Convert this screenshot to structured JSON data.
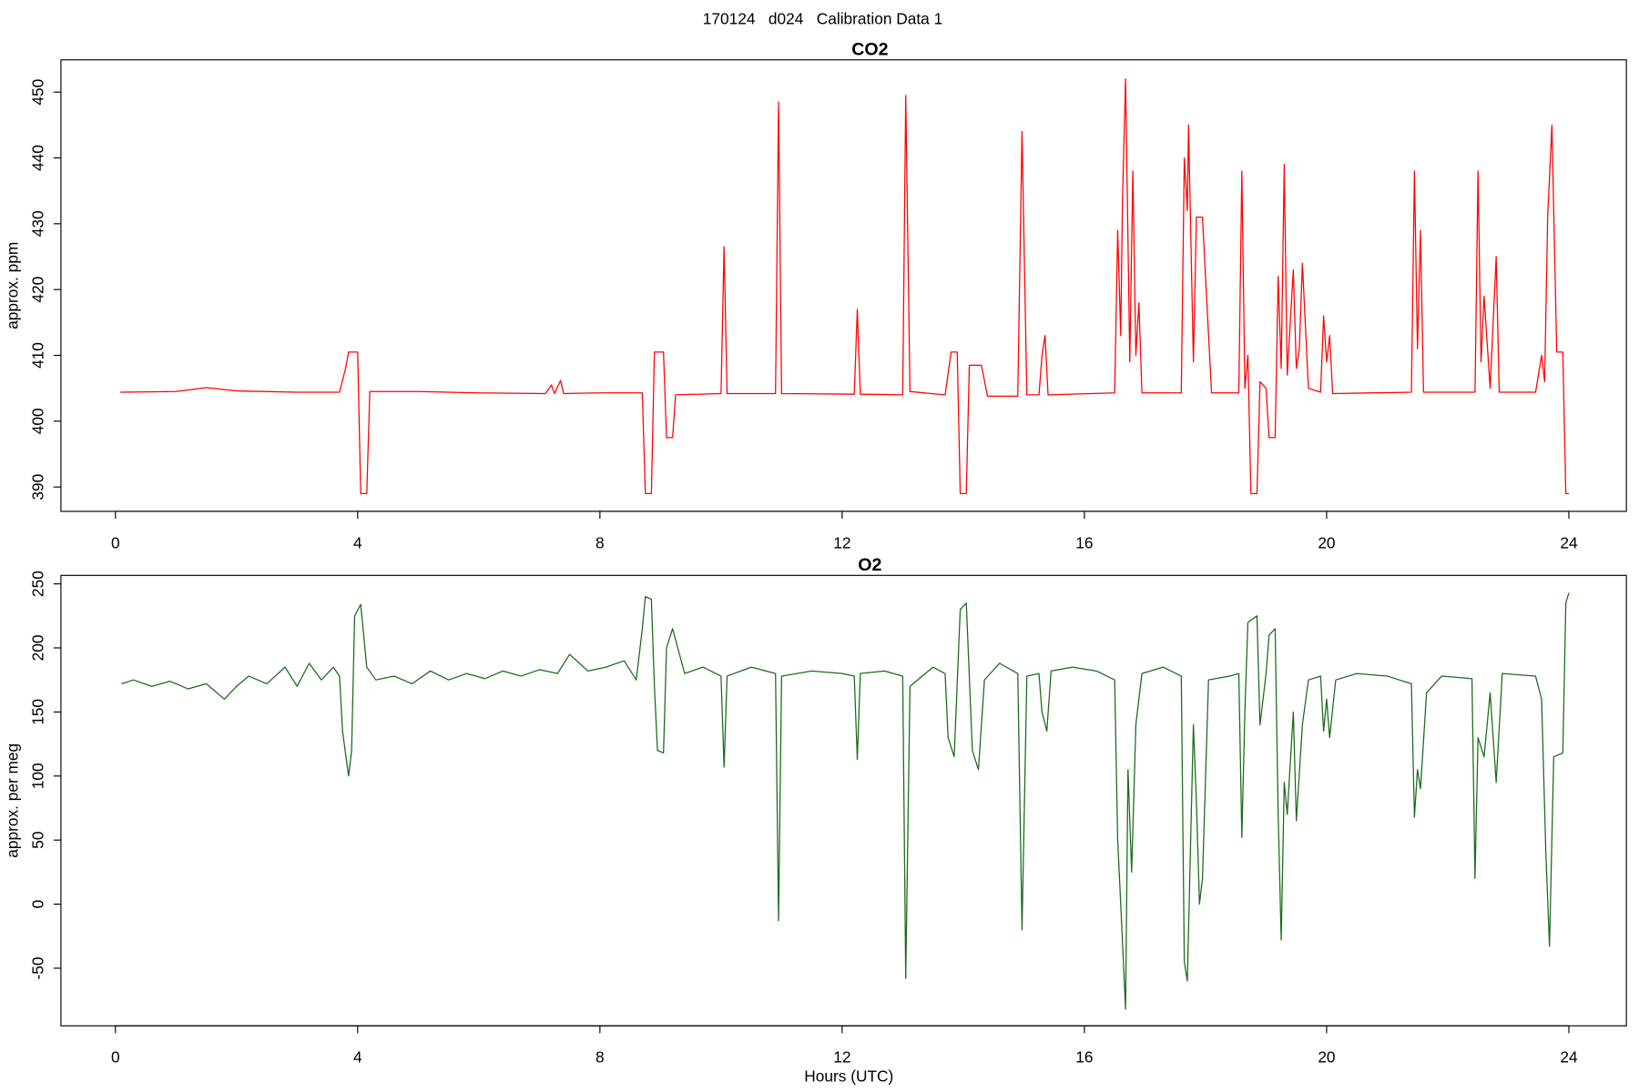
{
  "title": "170124   d024   Calibration Data 1",
  "chart_data": [
    {
      "type": "line",
      "title": "CO2",
      "ylabel": "approx. ppm",
      "color": "#ff0000",
      "xlim": [
        -0.9,
        24.95
      ],
      "xticks": [
        0,
        4,
        8,
        12,
        16,
        20,
        24
      ],
      "ylim": [
        386.3,
        454.9
      ],
      "yticks": [
        390,
        400,
        410,
        420,
        430,
        440,
        450
      ],
      "x": [
        0.08,
        1.0,
        1.5,
        2.0,
        3.0,
        3.7,
        3.8,
        3.85,
        4.0,
        4.05,
        4.15,
        4.2,
        5,
        6,
        7.1,
        7.2,
        7.25,
        7.35,
        7.4,
        8,
        8.7,
        8.75,
        8.85,
        8.9,
        9.05,
        9.1,
        9.2,
        9.25,
        10,
        10.05,
        10.1,
        10.9,
        10.95,
        11.0,
        12.2,
        12.25,
        12.3,
        13.0,
        13.05,
        13.12,
        13.7,
        13.8,
        13.9,
        13.95,
        14.05,
        14.1,
        14.3,
        14.4,
        14.9,
        14.97,
        15.05,
        15.25,
        15.3,
        15.35,
        15.4,
        16.5,
        16.55,
        16.6,
        16.63,
        16.68,
        16.75,
        16.8,
        16.85,
        16.9,
        16.95,
        17.6,
        17.65,
        17.7,
        17.72,
        17.8,
        17.85,
        17.95,
        18.0,
        18.1,
        18.55,
        18.6,
        18.65,
        18.7,
        18.75,
        18.85,
        18.9,
        19.0,
        19.05,
        19.15,
        19.2,
        19.25,
        19.3,
        19.35,
        19.45,
        19.5,
        19.55,
        19.6,
        19.7,
        19.9,
        19.95,
        20.0,
        20.05,
        20.1,
        21.4,
        21.45,
        21.5,
        21.55,
        21.6,
        22.45,
        22.5,
        22.55,
        22.6,
        22.7,
        22.8,
        22.85,
        23.45,
        23.55,
        23.6,
        23.65,
        23.72,
        23.8,
        23.9,
        23.95,
        24.0
      ],
      "values": [
        404.4,
        404.5,
        405.1,
        404.6,
        404.4,
        404.4,
        408,
        410.5,
        410.5,
        389,
        389,
        404.5,
        404.5,
        404.3,
        404.2,
        405.5,
        404.2,
        406.2,
        404.2,
        404.3,
        404.3,
        389,
        389,
        410.5,
        410.5,
        397.5,
        397.5,
        404,
        404.2,
        426.5,
        404.2,
        404.2,
        448.5,
        404.2,
        404.1,
        417,
        404.1,
        404.0,
        449.5,
        404.5,
        404,
        410.5,
        410.5,
        389,
        389,
        408.5,
        408.5,
        403.8,
        403.8,
        444,
        404,
        404,
        410,
        413,
        404,
        404.3,
        429,
        413,
        434,
        452,
        409,
        438,
        410,
        418,
        404.3,
        404.3,
        440,
        432,
        445,
        409,
        431,
        431,
        422,
        404.3,
        404.3,
        438,
        405,
        410,
        389,
        389,
        406,
        405,
        397.5,
        397.5,
        422,
        408,
        439,
        407,
        423,
        408,
        411,
        424,
        405,
        404.4,
        416,
        409,
        413,
        404.2,
        404.4,
        438,
        411,
        429,
        404.4,
        404.4,
        438,
        409,
        419,
        405,
        425,
        404.4,
        404.4,
        410,
        406,
        431,
        445,
        410.5,
        410.5,
        389,
        389
      ]
    },
    {
      "type": "line",
      "title": "O2",
      "ylabel": "approx. per meg",
      "xlabel": "Hours (UTC)",
      "color": "#1a6b1a",
      "xlim": [
        -0.9,
        24.95
      ],
      "xticks": [
        0,
        4,
        8,
        12,
        16,
        20,
        24
      ],
      "ylim": [
        -95,
        256.6
      ],
      "yticks": [
        -50,
        0,
        50,
        100,
        150,
        200,
        250
      ],
      "x": [
        0.1,
        0.3,
        0.6,
        0.9,
        1.2,
        1.5,
        1.8,
        2.0,
        2.2,
        2.5,
        2.8,
        3.0,
        3.2,
        3.4,
        3.6,
        3.7,
        3.75,
        3.85,
        3.9,
        3.95,
        4.05,
        4.15,
        4.3,
        4.6,
        4.9,
        5.2,
        5.5,
        5.8,
        6.1,
        6.4,
        6.7,
        7.0,
        7.3,
        7.5,
        7.8,
        8.1,
        8.4,
        8.6,
        8.7,
        8.75,
        8.85,
        8.9,
        8.95,
        9.05,
        9.1,
        9.2,
        9.4,
        9.7,
        10.0,
        10.05,
        10.1,
        10.5,
        10.9,
        10.95,
        11.0,
        11.5,
        12.0,
        12.2,
        12.25,
        12.3,
        12.7,
        13.0,
        13.05,
        13.12,
        13.5,
        13.7,
        13.75,
        13.85,
        13.95,
        14.05,
        14.15,
        14.25,
        14.35,
        14.6,
        14.9,
        14.97,
        15.05,
        15.25,
        15.3,
        15.38,
        15.45,
        15.8,
        16.2,
        16.5,
        16.55,
        16.6,
        16.68,
        16.72,
        16.78,
        16.85,
        16.95,
        17.3,
        17.6,
        17.65,
        17.7,
        17.8,
        17.85,
        17.9,
        17.95,
        18.05,
        18.4,
        18.55,
        18.6,
        18.65,
        18.7,
        18.85,
        18.9,
        19.0,
        19.05,
        19.15,
        19.2,
        19.25,
        19.3,
        19.35,
        19.45,
        19.5,
        19.6,
        19.7,
        19.9,
        19.95,
        20.0,
        20.05,
        20.15,
        20.5,
        21.0,
        21.4,
        21.45,
        21.5,
        21.55,
        21.65,
        21.9,
        22.4,
        22.45,
        22.5,
        22.6,
        22.7,
        22.8,
        22.9,
        23.45,
        23.55,
        23.62,
        23.68,
        23.75,
        23.9,
        23.95,
        24.0
      ],
      "values": [
        172,
        175,
        170,
        174,
        168,
        172,
        160,
        170,
        178,
        172,
        185,
        170,
        188,
        175,
        185,
        178,
        135,
        100,
        120,
        225,
        234,
        185,
        175,
        178,
        172,
        182,
        175,
        180,
        176,
        182,
        178,
        183,
        180,
        195,
        182,
        185,
        190,
        175,
        215,
        240,
        238,
        170,
        120,
        118,
        200,
        215,
        180,
        185,
        178,
        107,
        178,
        185,
        180,
        -13,
        178,
        182,
        180,
        178,
        113,
        180,
        182,
        178,
        -58,
        170,
        185,
        180,
        130,
        115,
        230,
        235,
        120,
        105,
        175,
        188,
        180,
        -20,
        178,
        180,
        150,
        135,
        182,
        185,
        182,
        175,
        50,
        0,
        -82,
        105,
        25,
        140,
        180,
        185,
        178,
        -45,
        -60,
        140,
        80,
        0,
        20,
        175,
        178,
        180,
        52,
        150,
        220,
        225,
        140,
        180,
        210,
        215,
        70,
        -28,
        95,
        70,
        150,
        65,
        140,
        175,
        178,
        135,
        160,
        130,
        175,
        180,
        178,
        172,
        68,
        105,
        90,
        165,
        178,
        176,
        20,
        130,
        115,
        165,
        95,
        180,
        178,
        160,
        40,
        -33,
        115,
        118,
        235,
        243
      ]
    }
  ]
}
